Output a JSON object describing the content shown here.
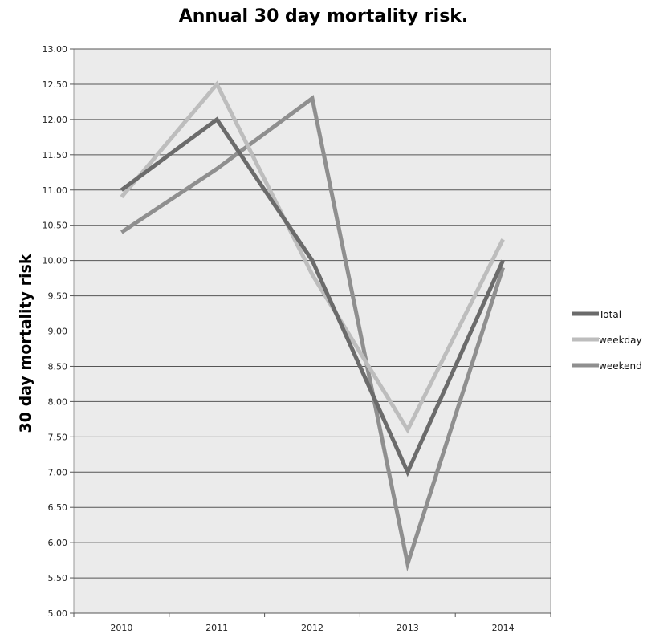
{
  "chart_data": {
    "type": "line",
    "title": "Annual 30 day mortality risk.",
    "xlabel": "",
    "ylabel": "30 day mortality risk",
    "categories": [
      "2010",
      "2011",
      "2012",
      "2013",
      "2014"
    ],
    "ylim": [
      5.0,
      13.0
    ],
    "yticks": [
      "5.00",
      "5.50",
      "6.00",
      "6.50",
      "7.00",
      "7.50",
      "8.00",
      "8.50",
      "9.00",
      "9.50",
      "10.00",
      "10.50",
      "11.00",
      "11.50",
      "12.00",
      "12.50",
      "13.00"
    ],
    "grid": true,
    "legend_position": "right",
    "series": [
      {
        "name": "Total",
        "values": [
          11.0,
          12.0,
          10.0,
          7.0,
          10.0
        ],
        "color": "#6b6b6b"
      },
      {
        "name": "weekday",
        "values": [
          10.9,
          12.5,
          9.8,
          7.6,
          10.3
        ],
        "color": "#bdbdbd"
      },
      {
        "name": "weekend",
        "values": [
          10.4,
          11.3,
          12.3,
          5.7,
          9.9
        ],
        "color": "#8f8f8f"
      }
    ],
    "plot_background": "#ebebeb"
  }
}
